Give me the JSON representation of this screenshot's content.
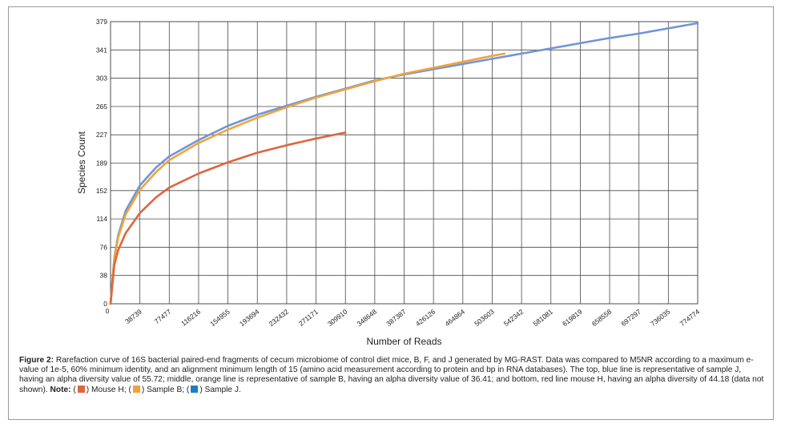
{
  "chart_data": {
    "type": "line",
    "ylabel": "Species Count",
    "xlabel": "Number of Reads",
    "xlim": [
      0,
      774774
    ],
    "ylim": [
      0,
      379
    ],
    "y_ticks": [
      0,
      38,
      76,
      114,
      152,
      189,
      227,
      265,
      303,
      341,
      379
    ],
    "x_ticks": [
      0,
      38739,
      77477,
      116216,
      154955,
      193694,
      232432,
      271171,
      309910,
      348648,
      387387,
      426126,
      464864,
      503603,
      542342,
      581081,
      619819,
      658558,
      697297,
      736035,
      774774
    ],
    "grid": true,
    "series": [
      {
        "color": "#6f95d8",
        "x": [
          0,
          5000,
          10000,
          20000,
          38739,
          60000,
          77477,
          116216,
          154955,
          193694,
          232432,
          271171,
          309910,
          348648,
          387387,
          426126,
          464864,
          503603,
          542342,
          581081,
          619819,
          658558,
          697297,
          736035,
          774774
        ],
        "y": [
          0,
          62,
          92,
          125,
          159,
          183,
          198,
          220,
          239,
          254,
          266,
          278,
          289,
          300,
          308,
          315,
          322,
          329,
          336,
          343,
          350,
          357,
          363,
          370,
          377
        ]
      },
      {
        "color": "#f0a33a",
        "x": [
          0,
          5000,
          10000,
          20000,
          38739,
          60000,
          77477,
          116216,
          154955,
          193694,
          232432,
          271171,
          309910,
          348648,
          387387,
          426126,
          464864,
          503603,
          520000
        ],
        "y": [
          0,
          60,
          89,
          120,
          153,
          177,
          193,
          216,
          234,
          250,
          264,
          277,
          288,
          299,
          309,
          317,
          325,
          333,
          336
        ]
      },
      {
        "color": "#dd6640",
        "x": [
          0,
          5000,
          10000,
          20000,
          38739,
          60000,
          77477,
          116216,
          154955,
          193694,
          232432,
          271171,
          309910
        ],
        "y": [
          0,
          52,
          72,
          95,
          122,
          143,
          156,
          175,
          190,
          203,
          213,
          222,
          230
        ]
      }
    ]
  },
  "caption": {
    "label": "Figure 2:",
    "text": " Rarefaction curve of 16S bacterial paired-end fragments of cecum microbiome of control diet mice, B, F, and J generated by MG-RAST. Data was compared to M5NR according to a maximum e-value of 1e-5, 60% minimum identity, and an alignment minimum length of 15 (amino acid measurement according to protein and bp in RNA databases). The top, blue line is representative of sample J, having an alpha diversity value of 55.72; middle, orange line is representative of sample B, having an alpha diversity value of 36.41; and bottom, red line mouse H, having an alpha diversity of 44.18 (data not shown). ",
    "note_label": "Note:",
    "legend": [
      {
        "open": " (",
        "color": "#dd6640",
        "close": ") Mouse H; "
      },
      {
        "open": "(",
        "color": "#f0a33a",
        "close": ") Sample B; "
      },
      {
        "open": "(",
        "color": "#1f7fc4",
        "close": ") Sample J."
      }
    ]
  }
}
